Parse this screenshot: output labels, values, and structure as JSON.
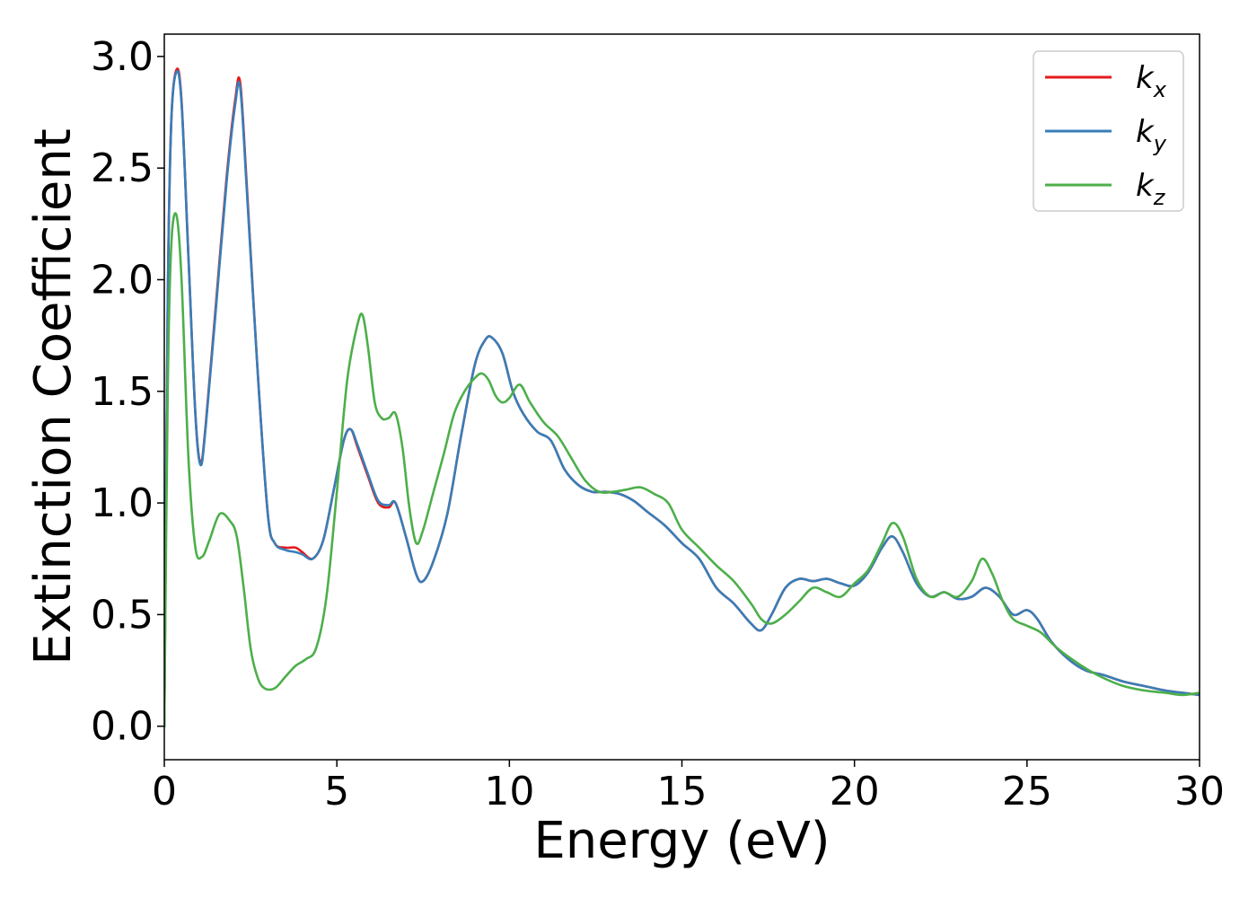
{
  "chart_data": {
    "type": "line",
    "xlabel": "Energy (eV)",
    "ylabel": "Extinction Coefficient",
    "xlim": [
      0,
      30
    ],
    "ylim": [
      -0.15,
      3.1
    ],
    "xticks": [
      0,
      5,
      10,
      15,
      20,
      25,
      30
    ],
    "xtick_labels": [
      "0",
      "5",
      "10",
      "15",
      "20",
      "25",
      "30"
    ],
    "yticks": [
      0.0,
      0.5,
      1.0,
      1.5,
      2.0,
      2.5,
      3.0
    ],
    "ytick_labels": [
      "0.0",
      "0.5",
      "1.0",
      "1.5",
      "2.0",
      "2.5",
      "3.0"
    ],
    "grid": false,
    "legend_position": "top-right",
    "series": [
      {
        "name": "k",
        "subscript": "x",
        "color": "#e41a1c",
        "x": [
          0,
          0.1,
          0.2,
          0.35,
          0.5,
          0.7,
          0.9,
          1.05,
          1.2,
          1.5,
          1.8,
          2.05,
          2.2,
          2.4,
          2.7,
          3.0,
          3.2,
          3.5,
          3.8,
          4.0,
          4.3,
          4.6,
          4.9,
          5.2,
          5.4,
          5.6,
          5.9,
          6.2,
          6.5,
          6.7,
          7.0,
          7.3,
          7.5,
          7.8,
          8.2,
          8.6,
          9.0,
          9.3,
          9.5,
          9.8,
          10.1,
          10.4,
          10.8,
          11.2,
          11.6,
          12.0,
          12.4,
          12.8,
          13.2,
          13.6,
          14.0,
          14.5,
          15.0,
          15.5,
          16.0,
          16.5,
          17.0,
          17.3,
          17.6,
          18.0,
          18.4,
          18.8,
          19.2,
          19.6,
          20.0,
          20.4,
          20.8,
          21.1,
          21.4,
          21.8,
          22.2,
          22.6,
          23.0,
          23.4,
          23.8,
          24.2,
          24.6,
          25.0,
          25.3,
          25.7,
          26.2,
          26.7,
          27.2,
          27.8,
          28.4,
          29.0,
          29.5,
          30.0
        ],
        "values": [
          0.0,
          1.9,
          2.7,
          2.94,
          2.8,
          2.1,
          1.4,
          1.18,
          1.35,
          1.9,
          2.45,
          2.8,
          2.88,
          2.4,
          1.6,
          0.95,
          0.82,
          0.8,
          0.8,
          0.78,
          0.75,
          0.83,
          1.05,
          1.28,
          1.33,
          1.25,
          1.12,
          1.0,
          0.98,
          1.0,
          0.85,
          0.68,
          0.65,
          0.74,
          0.95,
          1.3,
          1.62,
          1.73,
          1.74,
          1.67,
          1.5,
          1.4,
          1.32,
          1.28,
          1.15,
          1.08,
          1.05,
          1.05,
          1.04,
          1.01,
          0.96,
          0.9,
          0.82,
          0.75,
          0.62,
          0.55,
          0.46,
          0.43,
          0.5,
          0.62,
          0.66,
          0.65,
          0.66,
          0.64,
          0.63,
          0.69,
          0.8,
          0.85,
          0.78,
          0.64,
          0.58,
          0.6,
          0.57,
          0.58,
          0.62,
          0.58,
          0.5,
          0.52,
          0.48,
          0.38,
          0.3,
          0.25,
          0.23,
          0.2,
          0.18,
          0.16,
          0.15,
          0.14
        ]
      },
      {
        "name": "k",
        "subscript": "y",
        "color": "#377eb8",
        "x": [
          0,
          0.1,
          0.2,
          0.35,
          0.5,
          0.7,
          0.9,
          1.05,
          1.2,
          1.5,
          1.8,
          2.05,
          2.2,
          2.4,
          2.7,
          3.0,
          3.2,
          3.5,
          3.8,
          4.0,
          4.3,
          4.6,
          4.9,
          5.2,
          5.4,
          5.6,
          5.9,
          6.2,
          6.5,
          6.7,
          7.0,
          7.3,
          7.5,
          7.8,
          8.2,
          8.6,
          9.0,
          9.3,
          9.5,
          9.8,
          10.1,
          10.4,
          10.8,
          11.2,
          11.6,
          12.0,
          12.4,
          12.8,
          13.2,
          13.6,
          14.0,
          14.5,
          15.0,
          15.5,
          16.0,
          16.5,
          17.0,
          17.3,
          17.6,
          18.0,
          18.4,
          18.8,
          19.2,
          19.6,
          20.0,
          20.4,
          20.8,
          21.1,
          21.4,
          21.8,
          22.2,
          22.6,
          23.0,
          23.4,
          23.8,
          24.2,
          24.6,
          25.0,
          25.3,
          25.7,
          26.2,
          26.7,
          27.2,
          27.8,
          28.4,
          29.0,
          29.5,
          30.0
        ],
        "values": [
          0.0,
          1.9,
          2.7,
          2.93,
          2.79,
          2.1,
          1.4,
          1.17,
          1.34,
          1.88,
          2.43,
          2.78,
          2.86,
          2.38,
          1.6,
          0.95,
          0.82,
          0.79,
          0.78,
          0.77,
          0.75,
          0.83,
          1.05,
          1.28,
          1.33,
          1.26,
          1.13,
          1.01,
          0.99,
          1.0,
          0.85,
          0.68,
          0.65,
          0.74,
          0.95,
          1.3,
          1.62,
          1.73,
          1.74,
          1.67,
          1.5,
          1.4,
          1.32,
          1.28,
          1.15,
          1.08,
          1.05,
          1.05,
          1.04,
          1.01,
          0.96,
          0.9,
          0.82,
          0.75,
          0.62,
          0.55,
          0.46,
          0.43,
          0.5,
          0.62,
          0.66,
          0.65,
          0.66,
          0.64,
          0.63,
          0.69,
          0.8,
          0.85,
          0.78,
          0.64,
          0.58,
          0.6,
          0.57,
          0.58,
          0.62,
          0.58,
          0.5,
          0.52,
          0.48,
          0.38,
          0.3,
          0.25,
          0.23,
          0.2,
          0.18,
          0.16,
          0.15,
          0.14
        ]
      },
      {
        "name": "k",
        "subscript": "z",
        "color": "#4daf4a",
        "x": [
          0,
          0.1,
          0.2,
          0.35,
          0.5,
          0.7,
          0.9,
          1.1,
          1.3,
          1.6,
          1.9,
          2.1,
          2.3,
          2.5,
          2.7,
          2.9,
          3.2,
          3.5,
          3.8,
          4.1,
          4.4,
          4.7,
          5.0,
          5.3,
          5.6,
          5.75,
          5.9,
          6.1,
          6.3,
          6.5,
          6.7,
          6.9,
          7.1,
          7.3,
          7.5,
          7.8,
          8.1,
          8.4,
          8.7,
          9.0,
          9.2,
          9.4,
          9.6,
          9.8,
          10.0,
          10.3,
          10.6,
          11.0,
          11.4,
          11.8,
          12.2,
          12.6,
          13.0,
          13.4,
          13.8,
          14.2,
          14.6,
          15.0,
          15.5,
          16.0,
          16.5,
          17.0,
          17.3,
          17.6,
          18.0,
          18.4,
          18.8,
          19.2,
          19.6,
          20.0,
          20.4,
          20.8,
          21.1,
          21.4,
          21.8,
          22.2,
          22.6,
          23.0,
          23.4,
          23.7,
          24.0,
          24.3,
          24.6,
          25.0,
          25.4,
          25.8,
          26.3,
          26.8,
          27.3,
          27.8,
          28.4,
          29.0,
          29.5,
          30.0
        ],
        "values": [
          0.0,
          1.5,
          2.15,
          2.29,
          2.0,
          1.2,
          0.8,
          0.76,
          0.83,
          0.95,
          0.92,
          0.85,
          0.62,
          0.35,
          0.22,
          0.17,
          0.17,
          0.22,
          0.27,
          0.3,
          0.35,
          0.58,
          1.05,
          1.55,
          1.8,
          1.84,
          1.7,
          1.45,
          1.38,
          1.38,
          1.4,
          1.25,
          0.98,
          0.82,
          0.88,
          1.05,
          1.22,
          1.4,
          1.5,
          1.56,
          1.58,
          1.55,
          1.48,
          1.45,
          1.47,
          1.53,
          1.45,
          1.36,
          1.3,
          1.2,
          1.1,
          1.05,
          1.05,
          1.06,
          1.07,
          1.04,
          1.0,
          0.88,
          0.8,
          0.72,
          0.65,
          0.55,
          0.48,
          0.46,
          0.5,
          0.56,
          0.62,
          0.6,
          0.58,
          0.64,
          0.7,
          0.82,
          0.91,
          0.85,
          0.66,
          0.58,
          0.6,
          0.58,
          0.65,
          0.75,
          0.68,
          0.56,
          0.48,
          0.45,
          0.42,
          0.36,
          0.3,
          0.25,
          0.21,
          0.18,
          0.16,
          0.15,
          0.14,
          0.15
        ]
      }
    ]
  }
}
